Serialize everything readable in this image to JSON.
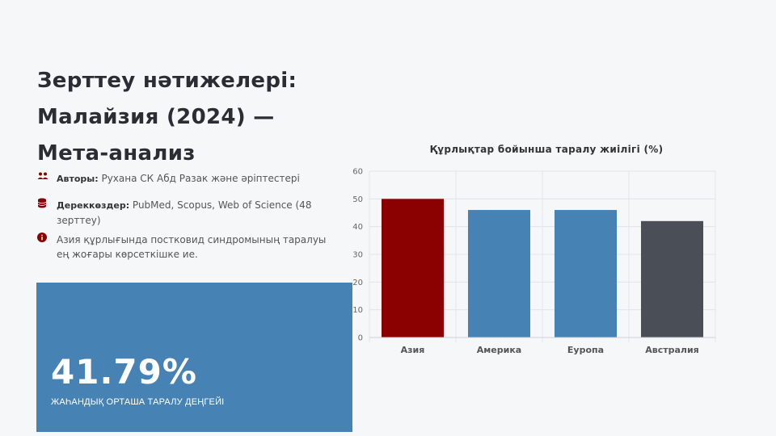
{
  "slide": {
    "title_lines": [
      "Зерттеу нәтижелері:",
      "Малайзия (2024) —",
      "Мета-анализ"
    ],
    "authors_label": "Авторы:",
    "authors_value": "Рухана СК Абд Разак және әріптестері",
    "sources_label": "Дереккөздер:",
    "sources_value": "PubMed, Scopus, Web of Science (48 зерттеу)",
    "finding": "Азия құрлығында постковид синдромының таралуы ең жоғары көрсеткішке ие.",
    "stat_value": "41.79%",
    "stat_label": "ЖАҺАНДЫҚ ОРТАША ТАРАЛУ ДЕҢГЕЙІ",
    "icons": [
      "users-icon",
      "database-icon",
      "info-icon"
    ]
  },
  "colors": {
    "accent_blue": "#4682b4",
    "accent_red": "#8b0000",
    "dark_gray": "#4a4f57"
  },
  "chart_data": {
    "type": "bar",
    "title": "Құрлықтар бойынша таралу жиілігі (%)",
    "categories": [
      "Азия",
      "Америка",
      "Еуропа",
      "Австралия"
    ],
    "values": [
      50,
      46,
      46,
      42
    ],
    "bar_colors": [
      "#8b0000",
      "#4682b4",
      "#4682b4",
      "#4a4f57"
    ],
    "ylim": [
      0,
      60
    ],
    "yticks": [
      0,
      10,
      20,
      30,
      40,
      50,
      60
    ],
    "grid": true,
    "xlabel": "",
    "ylabel": ""
  }
}
